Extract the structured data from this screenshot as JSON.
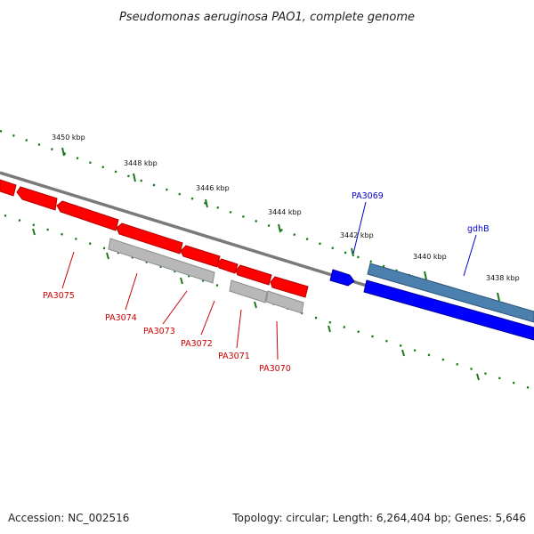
{
  "title": "Pseudomonas aeruginosa PAO1, complete genome",
  "footer": {
    "accession": "Accession: NC_002516",
    "summary": "Topology: circular; Length: 6,264,404 bp; Genes: 5,646"
  },
  "colors": {
    "backbone": "#808080",
    "tick": "#1a7a1a",
    "reverse_gene": "#ff0000",
    "forward_gene": "#0000ff",
    "forward_gene_light": "#4a7fae",
    "grey_feature": "#b8b8b8",
    "label_red": "#cc0000",
    "label_blue": "#0000cc"
  },
  "ticks": [
    {
      "label": "3450 kbp"
    },
    {
      "label": "3448 kbp"
    },
    {
      "label": "3446 kbp"
    },
    {
      "label": "3444 kbp"
    },
    {
      "label": "3442 kbp"
    },
    {
      "label": "3440 kbp"
    },
    {
      "label": "3438 kbp"
    }
  ],
  "genes": [
    {
      "name": "PA3075",
      "strand": "reverse"
    },
    {
      "name": "PA3074",
      "strand": "reverse"
    },
    {
      "name": "PA3073",
      "strand": "reverse"
    },
    {
      "name": "PA3072",
      "strand": "reverse"
    },
    {
      "name": "PA3071",
      "strand": "reverse"
    },
    {
      "name": "PA3070",
      "strand": "reverse"
    },
    {
      "name": "PA3069",
      "strand": "forward"
    },
    {
      "name": "gdhB",
      "strand": "forward"
    }
  ]
}
